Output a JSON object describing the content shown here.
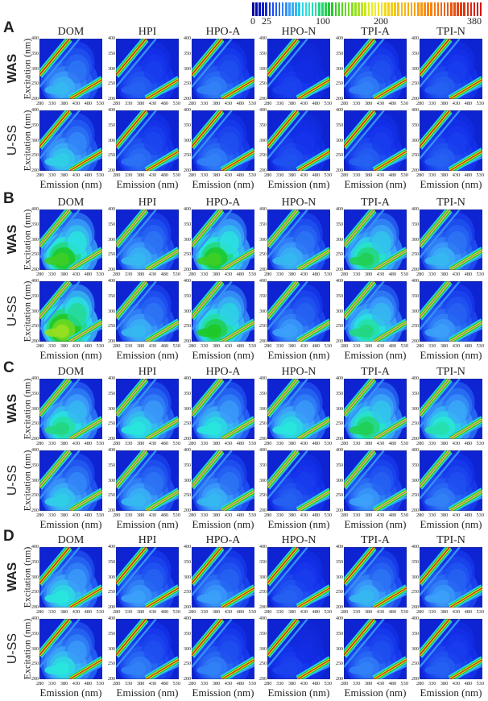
{
  "colorbar": {
    "labels": [
      "0",
      "25",
      "100",
      "200",
      "380"
    ],
    "min": 0,
    "max": 380
  },
  "columns": [
    "DOM",
    "HPI",
    "HPO-A",
    "HPO-N",
    "TPI-A",
    "TPI-N"
  ],
  "rows": [
    "WAS",
    "U-SS"
  ],
  "y_axis_title": "Excitation (nm)",
  "x_axis_title": "Emission (nm)",
  "x_ticks": [
    "280",
    "330",
    "380",
    "430",
    "480",
    "530"
  ],
  "y_ticks": [
    "400",
    "350",
    "300",
    "250",
    "200"
  ],
  "sections": [
    {
      "label": "A"
    },
    {
      "label": "B"
    },
    {
      "label": "C"
    },
    {
      "label": "D"
    }
  ],
  "chart_data": {
    "type": "heatmap",
    "title": "",
    "xlabel": "Emission (nm)",
    "ylabel": "Excitation (nm)",
    "xlim": [
      280,
      530
    ],
    "ylim": [
      200,
      400
    ],
    "color_scale": {
      "min": 0,
      "max": 380,
      "ticks": [
        0,
        25,
        100,
        200,
        380
      ]
    },
    "panel_peak_intensity": {
      "A": {
        "WAS": [
          70,
          40,
          50,
          30,
          50,
          40
        ],
        "U-SS": [
          80,
          45,
          50,
          35,
          40,
          40
        ]
      },
      "B": {
        "WAS": [
          140,
          70,
          140,
          70,
          120,
          70
        ],
        "U-SS": [
          170,
          70,
          130,
          60,
          110,
          60
        ]
      },
      "C": {
        "WAS": [
          110,
          90,
          90,
          90,
          120,
          100
        ],
        "U-SS": [
          80,
          70,
          70,
          40,
          60,
          50
        ]
      },
      "D": {
        "WAS": [
          90,
          60,
          60,
          40,
          70,
          60
        ],
        "U-SS": [
          90,
          50,
          50,
          30,
          50,
          40
        ]
      }
    },
    "scatter_band_center": {
      "A": "red",
      "B": "gray",
      "C": "gray",
      "D": "red"
    }
  }
}
